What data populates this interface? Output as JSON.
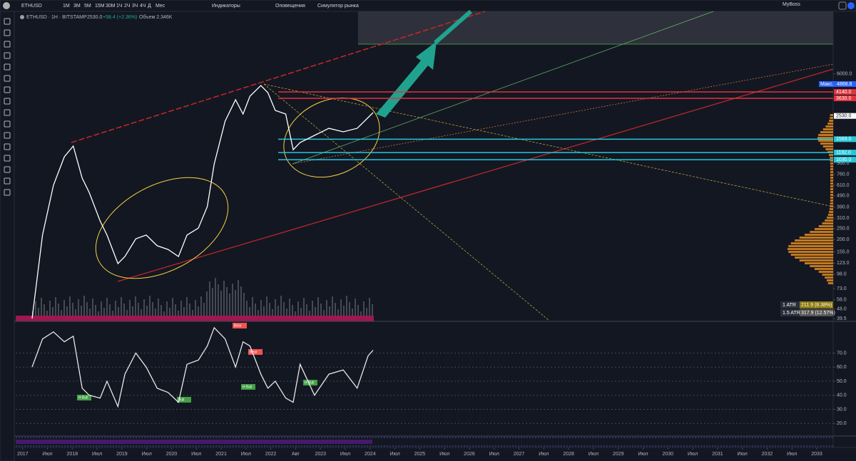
{
  "toolbar": {
    "symbol": "ETHUSD",
    "intervals": [
      "1М",
      "3М",
      "5М",
      "15М",
      "30М",
      "1Ч",
      "2Ч",
      "3Ч",
      "4Ч",
      "Д",
      "Мес"
    ],
    "indicators": "Индикаторы",
    "alerts": "Оповещения",
    "replay": "Симулятор рынка",
    "user": "MyBoss"
  },
  "legend": {
    "title": "ETHUSD · 1H · BITSTAMP",
    "price": "2530.0",
    "change": "+58.4 (+2.36%)",
    "volume": "Объем 2.346K"
  },
  "chart_data": [
    {
      "type": "line",
      "log_scale": true,
      "x": [
        2017.19,
        2017.4,
        2017.62,
        2017.84,
        2018.02,
        2018.2,
        2018.34,
        2018.56,
        2018.7,
        2018.92,
        2019.06,
        2019.28,
        2019.49,
        2019.71,
        2019.93,
        2020.14,
        2020.31,
        2020.54,
        2020.72,
        2020.86,
        2021.08,
        2021.29,
        2021.44,
        2021.58,
        2021.8,
        2021.94,
        2022.09,
        2022.3,
        2022.45,
        2022.59,
        2022.88,
        2023.17,
        2023.46,
        2023.74,
        2023.96,
        2024.06
      ],
      "series": [
        {
          "name": "ETHUSD",
          "color": "#ffffff",
          "values": [
            39.5,
            219,
            609,
            1094,
            1362,
            705,
            526,
            293,
            219,
            122,
            141,
            203,
            219,
            176,
            163,
            141,
            219,
            253,
            393,
            944,
            2274,
            3524,
            2631,
            3793,
            4724,
            4081,
            2831,
            2631,
            1265,
            1466,
            1696,
            1962,
            1824,
            1962,
            2445,
            2708
          ]
        }
      ],
      "xlim": [
        2016.86,
        2033.33
      ],
      "xticks": [
        2017,
        {
          "value": 2017.5,
          "label": "Июл"
        },
        2018,
        {
          "value": 2018.5,
          "label": "Июл"
        },
        2019,
        {
          "value": 2019.5,
          "label": "Июл"
        },
        2020,
        {
          "value": 2020.5,
          "label": "Июл"
        },
        2021,
        {
          "value": 2021.5,
          "label": "Июл"
        },
        2022,
        {
          "value": 2022.5,
          "label": "Авг"
        },
        2023,
        {
          "value": 2023.5,
          "label": "Июл"
        },
        2024,
        {
          "value": 2024.5,
          "label": "Июл"
        },
        2025,
        {
          "value": 2025.5,
          "label": "Июл"
        },
        2026,
        {
          "value": 2026.5,
          "label": "Июл"
        },
        2027,
        {
          "value": 2027.5,
          "label": "Июл"
        },
        2028,
        {
          "value": 2028.5,
          "label": "Июл"
        },
        2029,
        {
          "value": 2029.5,
          "label": "Июл"
        },
        2030,
        {
          "value": 2030.5,
          "label": "Июл"
        },
        2031,
        {
          "value": 2031.5,
          "label": "Июл"
        },
        2032,
        {
          "value": 2032.5,
          "label": "Июл"
        },
        2033
      ],
      "ylim": [
        39.5,
        18150
      ],
      "yticks": [
        {
          "value": 6000,
          "label": "6000.0"
        },
        {
          "value": 960,
          "label": "960.0"
        },
        {
          "value": 760,
          "label": "760.0"
        },
        {
          "value": 610,
          "label": "610.0"
        },
        {
          "value": 490,
          "label": "490.0"
        },
        {
          "value": 390,
          "label": "390.0"
        },
        {
          "value": 310,
          "label": "310.0"
        },
        {
          "value": 250,
          "label": "250.0"
        },
        {
          "value": 200,
          "label": "200.0"
        },
        {
          "value": 155,
          "label": "155.0"
        },
        {
          "value": 123,
          "label": "123.0"
        },
        {
          "value": 98,
          "label": "98.0"
        },
        {
          "value": 73,
          "label": "73.0"
        },
        {
          "value": 58,
          "label": "58.0"
        },
        {
          "value": 48,
          "label": "48.0"
        },
        39.5
      ],
      "levels": [
        {
          "value": 4140,
          "label": "4140.0",
          "color": "#e0323c"
        },
        {
          "value": 3630,
          "label": "3630.0",
          "color": "#e0323c"
        },
        {
          "value": 1569,
          "label": "1569.0",
          "color": "#26c6da"
        },
        {
          "value": 1192,
          "label": "1192.0",
          "color": "#26c6da"
        },
        {
          "value": 1030,
          "label": "1030.0",
          "color": "#26c6da"
        }
      ],
      "max_marker": {
        "name": "Макс.",
        "value": 4868.8,
        "label": "4868.8"
      },
      "last_price": {
        "value": 2530,
        "label": "2530.0"
      },
      "atr": [
        {
          "name": "1 ATR",
          "label": "211.9 (8.38%)"
        },
        {
          "name": "1.5 ATR",
          "label": "317.9 (12.57%)"
        }
      ]
    },
    {
      "type": "line",
      "x": [
        2017.19,
        2017.4,
        2017.62,
        2017.84,
        2018.02,
        2018.2,
        2018.34,
        2018.56,
        2018.7,
        2018.92,
        2019.06,
        2019.28,
        2019.49,
        2019.71,
        2019.93,
        2020.14,
        2020.31,
        2020.54,
        2020.72,
        2020.86,
        2021.08,
        2021.29,
        2021.44,
        2021.58,
        2021.8,
        2021.94,
        2022.09,
        2022.3,
        2022.45,
        2022.59,
        2022.88,
        2023.17,
        2023.46,
        2023.74,
        2023.96,
        2024.06
      ],
      "series": [
        {
          "name": "RSI",
          "color": "#e8e8e8",
          "values": [
            60,
            80,
            85,
            78,
            82,
            45,
            40,
            38,
            50,
            32,
            55,
            70,
            60,
            45,
            42,
            35,
            62,
            65,
            75,
            88,
            80,
            60,
            78,
            75,
            55,
            45,
            50,
            38,
            35,
            62,
            40,
            55,
            58,
            45,
            68,
            72
          ]
        }
      ],
      "xlim": [
        2016.86,
        2033.33
      ],
      "ylim": [
        11,
        92
      ],
      "yticks": [
        {
          "value": 70,
          "label": "70.0"
        },
        {
          "value": 60,
          "label": "60.0"
        },
        {
          "value": 50,
          "label": "50.0"
        },
        {
          "value": 40,
          "label": "40.0"
        },
        {
          "value": 30,
          "label": "30.0"
        },
        {
          "value": 20,
          "label": "20.0"
        }
      ],
      "signals": [
        "H Bull",
        "Bull",
        "H Bull",
        "H Bull",
        "Bear",
        "Bear"
      ]
    }
  ]
}
